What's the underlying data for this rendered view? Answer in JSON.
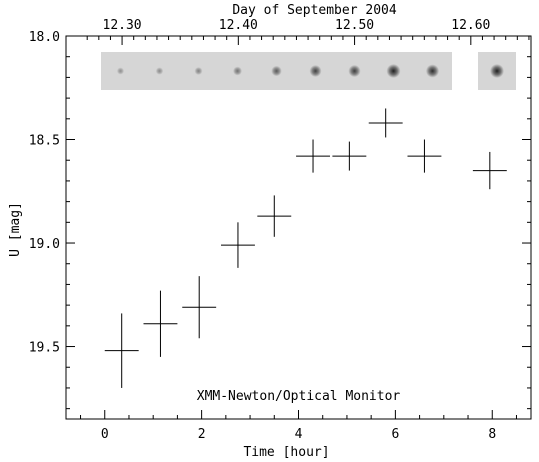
{
  "chart_data": {
    "type": "scatter",
    "title": "",
    "xlabel": "Time [hour]",
    "ylabel": "U [mag]",
    "top_axis_label": "Day of September 2004",
    "annotation": "XMM-Newton/Optical Monitor",
    "xlim": [
      -0.8,
      8.8
    ],
    "ylim": [
      19.85,
      18.0
    ],
    "y_inverted": true,
    "x_ticks": [
      0,
      2,
      4,
      6,
      8
    ],
    "x_tick_labels": [
      "0",
      "2",
      "4",
      "6",
      "8"
    ],
    "y_ticks": [
      18.0,
      18.5,
      19.0,
      19.5
    ],
    "y_tick_labels": [
      "18.0",
      "18.5",
      "19.0",
      "19.5"
    ],
    "top_ticks": [
      12.3,
      12.4,
      12.5,
      12.6
    ],
    "top_tick_labels": [
      "12.30",
      "12.40",
      "12.50",
      "12.60"
    ],
    "top_axis_zero_day": 12.2851,
    "grid": false,
    "series": [
      {
        "x": [
          0.35,
          1.15,
          1.95,
          2.75,
          3.5,
          4.3,
          5.05,
          5.8,
          6.6,
          7.95
        ],
        "y": [
          19.52,
          19.39,
          19.31,
          19.01,
          18.87,
          18.58,
          18.58,
          18.42,
          18.58,
          18.65
        ],
        "x_err": [
          0.35,
          0.35,
          0.35,
          0.35,
          0.35,
          0.35,
          0.35,
          0.35,
          0.35,
          0.35
        ],
        "y_err": [
          0.18,
          0.16,
          0.15,
          0.11,
          0.1,
          0.08,
          0.07,
          0.07,
          0.08,
          0.09
        ]
      }
    ],
    "image_strip": {
      "segments": [
        {
          "panels": 9,
          "darkness": [
            0.12,
            0.15,
            0.2,
            0.3,
            0.45,
            0.6,
            0.62,
            0.8,
            0.72
          ]
        },
        {
          "panels": 1,
          "darkness": [
            0.8
          ]
        }
      ]
    }
  }
}
